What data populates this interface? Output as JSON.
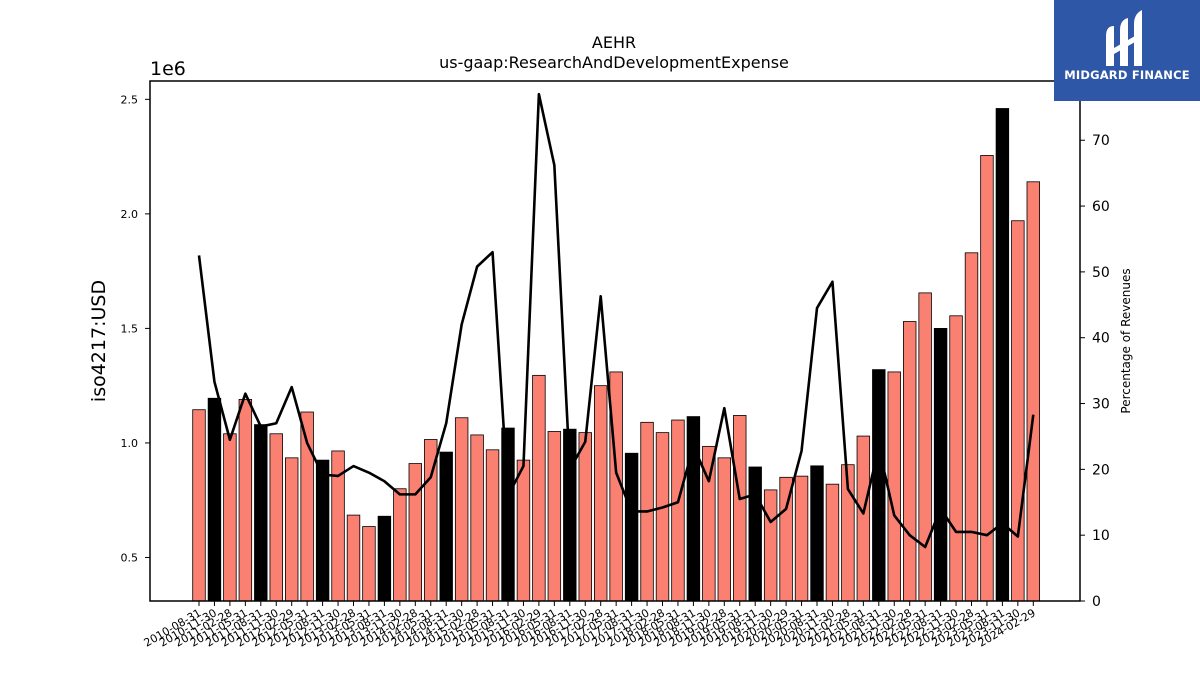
{
  "header": {
    "title": "AEHR",
    "subtitle": "us-gaap:ResearchAndDevelopmentExpense"
  },
  "logo": {
    "text": "MIDGARD FINANCE",
    "icon": "midgard-m-logo-icon",
    "background": "#2f57a7"
  },
  "chart_data": {
    "type": "bar",
    "title": "AEHR",
    "subtitle": "us-gaap:ResearchAndDevelopmentExpense",
    "ylabel": "iso4217:USD",
    "y_offset_label": "1e6",
    "y2label": "Percentage of Revenues",
    "ylim": [
      310000,
      2580000
    ],
    "y2lim": [
      0,
      79
    ],
    "yticks": [
      0.5,
      1.0,
      1.5,
      2.0,
      2.5
    ],
    "y2ticks": [
      0,
      10,
      20,
      30,
      40,
      50,
      60,
      70
    ],
    "grid": false,
    "legend": "none",
    "colors": {
      "quarter_bar": "#fa8072",
      "fiscal_year_end_bar": "#000000",
      "line": "#000000"
    },
    "categories": [
      "2010-08-31",
      "2010-11-30",
      "2011-02-28",
      "2011-05-31",
      "2011-08-31",
      "2011-11-30",
      "2012-02-29",
      "2012-05-31",
      "2012-08-31",
      "2012-11-30",
      "2013-02-28",
      "2013-05-31",
      "2013-08-31",
      "2013-11-30",
      "2014-02-28",
      "2014-05-31",
      "2014-08-31",
      "2014-11-30",
      "2015-02-28",
      "2015-05-31",
      "2015-08-31",
      "2015-11-30",
      "2016-02-29",
      "2016-05-31",
      "2016-08-31",
      "2016-11-30",
      "2017-02-28",
      "2017-05-31",
      "2017-08-31",
      "2017-11-30",
      "2018-02-28",
      "2018-05-31",
      "2018-08-31",
      "2018-11-30",
      "2019-02-28",
      "2019-05-31",
      "2019-08-31",
      "2019-11-30",
      "2020-02-29",
      "2020-05-31",
      "2020-08-31",
      "2020-11-30",
      "2021-02-28",
      "2021-05-31",
      "2021-08-31",
      "2021-11-30",
      "2022-02-28",
      "2022-05-31",
      "2022-08-31",
      "2022-11-30",
      "2023-02-28",
      "2023-05-31",
      "2023-08-31",
      "2023-11-30",
      "2024-02-29"
    ],
    "fiscal_year_end": [
      false,
      true,
      false,
      false,
      true,
      false,
      false,
      false,
      true,
      false,
      false,
      false,
      true,
      false,
      false,
      false,
      true,
      false,
      false,
      false,
      true,
      false,
      false,
      false,
      true,
      false,
      false,
      false,
      true,
      false,
      false,
      false,
      true,
      false,
      false,
      false,
      true,
      false,
      false,
      false,
      true,
      false,
      false,
      false,
      true,
      false,
      false,
      false,
      true,
      false,
      false,
      false,
      true,
      false,
      false
    ],
    "series": [
      {
        "name": "iso4217:USD",
        "axis": "left",
        "values": [
          1145000,
          1195000,
          1040000,
          1190000,
          1080000,
          1040000,
          935000,
          1135000,
          925000,
          965000,
          685000,
          635000,
          680000,
          800000,
          910000,
          1015000,
          960000,
          1110000,
          1035000,
          970000,
          1065000,
          925000,
          1295000,
          1050000,
          1060000,
          1045000,
          1250000,
          1310000,
          955000,
          1090000,
          1045000,
          1100000,
          1115000,
          985000,
          935000,
          1120000,
          895000,
          795000,
          850000,
          855000,
          900000,
          820000,
          905000,
          1030000,
          1320000,
          1310000,
          1530000,
          1655000,
          1500000,
          1555000,
          1830000,
          2255000,
          2460000,
          1970000,
          2140000
        ]
      },
      {
        "name": "Percentage of Revenues",
        "axis": "right",
        "values": [
          52.5,
          33.3,
          24.5,
          31.5,
          26.5,
          27.0,
          32.5,
          24.0,
          19.2,
          19.0,
          20.5,
          19.5,
          18.2,
          16.2,
          16.2,
          18.8,
          27.0,
          42.0,
          50.8,
          53.0,
          16.0,
          20.5,
          77.0,
          66.2,
          20.0,
          24.2,
          46.3,
          19.5,
          13.6,
          13.6,
          14.2,
          15.0,
          23.5,
          18.2,
          29.3,
          15.5,
          16.2,
          12.0,
          14.0,
          22.8,
          44.5,
          48.5,
          17.0,
          13.3,
          23.3,
          13.0,
          10.0,
          8.2,
          14.0,
          10.5,
          10.5,
          10.0,
          11.8,
          9.8,
          28.3
        ]
      }
    ]
  }
}
